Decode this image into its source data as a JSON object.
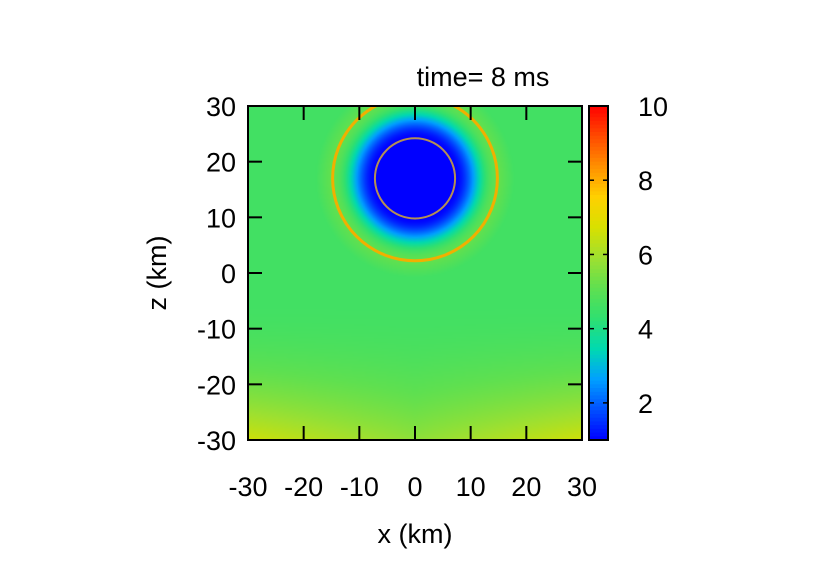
{
  "chart_data": {
    "type": "heatmap",
    "title": "time= 8 ms",
    "xlabel": "x (km)",
    "ylabel": "z (km)",
    "xlim": [
      -30,
      30
    ],
    "ylim": [
      -30,
      30
    ],
    "x_ticks": [
      "-30",
      "-20",
      "-10",
      "0",
      "10",
      "20",
      "30"
    ],
    "y_ticks": [
      "30",
      "20",
      "10",
      "0",
      "-10",
      "-20",
      "-30"
    ],
    "x_tick_values": [
      -30,
      -20,
      -10,
      0,
      10,
      20,
      30
    ],
    "y_tick_values": [
      30,
      20,
      10,
      0,
      -10,
      -20,
      -30
    ],
    "colorbar": {
      "range": [
        1,
        10
      ],
      "ticks": [
        "10",
        "8",
        "6",
        "4",
        "2"
      ],
      "tick_values": [
        10,
        8,
        6,
        4,
        2
      ],
      "colors": [
        "#0000ff",
        "#0050ff",
        "#00a0ff",
        "#00d9b0",
        "#2fe070",
        "#5fe050",
        "#9fe030",
        "#d8e000",
        "#ffd000",
        "#ff9000",
        "#ff4a00",
        "#ff0000"
      ]
    },
    "field": {
      "background_value": 4.6,
      "bubble_center": [
        0,
        17
      ],
      "inner_radius_km": 7.2,
      "inner_value": 1.0,
      "outer_radius_km": 14.8,
      "outer_ring_value": 7.4,
      "bottom_corner_value": 6.6
    },
    "grid": false,
    "legend": "none"
  }
}
